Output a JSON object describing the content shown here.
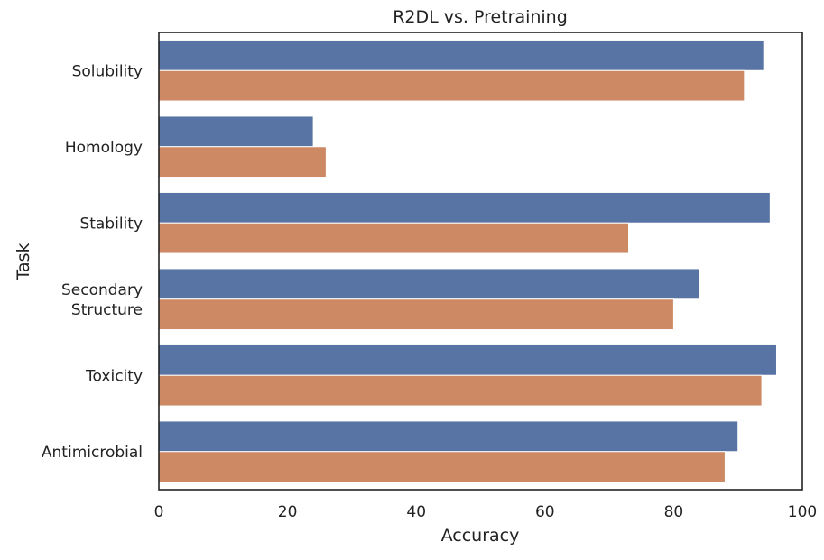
{
  "chart_data": {
    "type": "bar",
    "orientation": "horizontal",
    "title": "R2DL vs. Pretraining",
    "xlabel": "Accuracy",
    "ylabel": "Task",
    "xlim": [
      0,
      100
    ],
    "xticks": [
      "0",
      "20",
      "40",
      "60",
      "80",
      "100"
    ],
    "categories": [
      [
        "Solubility"
      ],
      [
        "Homology"
      ],
      [
        "Stability"
      ],
      [
        "Secondary",
        "Structure"
      ],
      [
        "Toxicity"
      ],
      [
        "Antimicrobial"
      ]
    ],
    "series": [
      {
        "color": "#5874a4",
        "values": [
          94,
          24,
          95,
          84,
          96,
          90
        ]
      },
      {
        "color": "#cc8963",
        "values": [
          91,
          26,
          73,
          80,
          93.7,
          88
        ]
      }
    ],
    "grid": false,
    "legend": "none"
  }
}
